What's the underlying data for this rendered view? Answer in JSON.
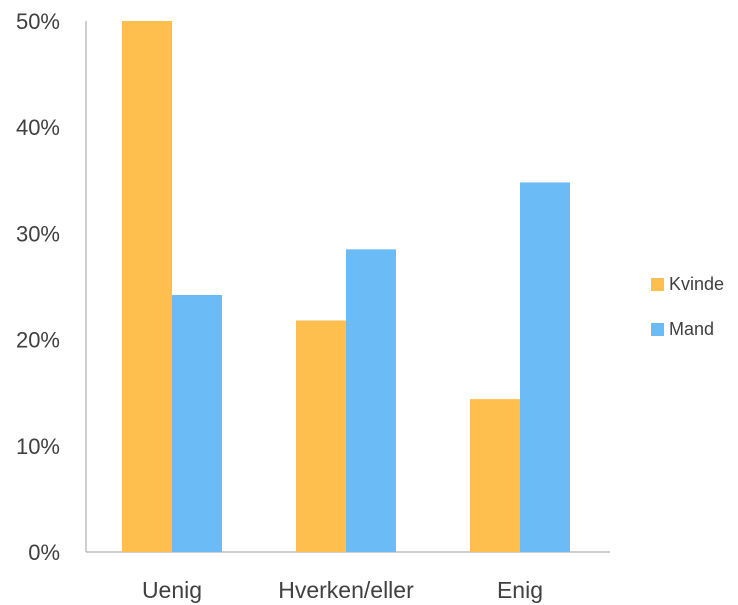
{
  "chart_data": {
    "type": "bar",
    "categories": [
      "Uenig",
      "Hverken/eller",
      "Enig"
    ],
    "series": [
      {
        "name": "Kvinde",
        "color": "#FFBF4F",
        "values": [
          50.0,
          21.8,
          14.4
        ]
      },
      {
        "name": "Mand",
        "color": "#6BBCF6",
        "values": [
          24.2,
          28.5,
          34.8
        ]
      }
    ],
    "ylim": [
      0,
      50
    ],
    "yticks": [
      0,
      10,
      20,
      30,
      40,
      50
    ],
    "ytick_labels": [
      "0%",
      "10%",
      "20%",
      "30%",
      "40%",
      "50%"
    ],
    "grid": false,
    "legend": "right"
  }
}
